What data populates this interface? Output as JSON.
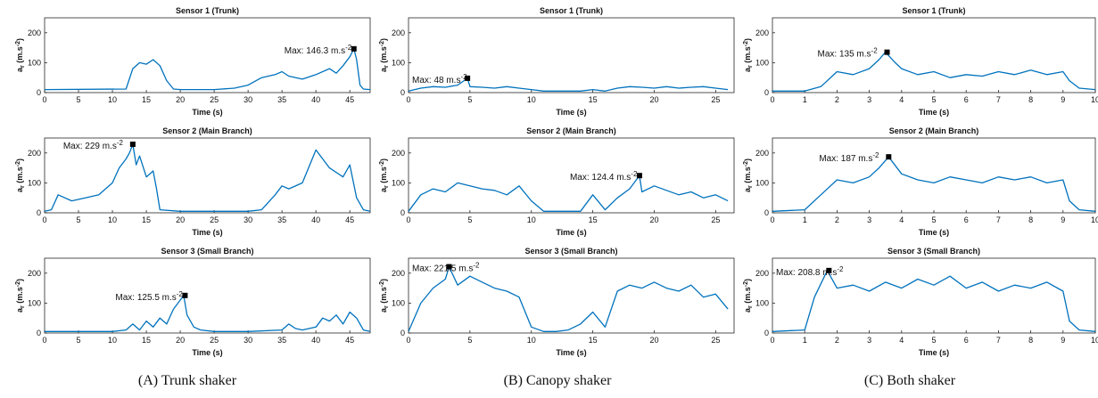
{
  "chart_data": [
    {
      "type": "line",
      "panel_group": "A",
      "title": "Sensor 1 (Trunk)",
      "xlabel": "Time (s)",
      "ylabel": "a_r (m.s^-2)",
      "xlim": [
        0,
        48
      ],
      "ylim": [
        0,
        250
      ],
      "xticks": [
        0,
        5,
        10,
        15,
        20,
        25,
        30,
        35,
        40,
        45
      ],
      "yticks": [
        0,
        100,
        200
      ],
      "series": [
        {
          "color": "#0072BD",
          "x": [
            0,
            12,
            13,
            14,
            15,
            16,
            17,
            18,
            19,
            20,
            25,
            28,
            30,
            32,
            34,
            35,
            36,
            38,
            40,
            42,
            43,
            44,
            45,
            45.6,
            46,
            46.5,
            47,
            48
          ],
          "y": [
            10,
            12,
            80,
            100,
            95,
            110,
            90,
            40,
            12,
            10,
            10,
            15,
            25,
            50,
            60,
            70,
            55,
            45,
            60,
            80,
            65,
            90,
            120,
            146.3,
            110,
            25,
            12,
            10
          ]
        }
      ],
      "marker": {
        "x": 45.6,
        "y": 146.3
      },
      "annotation": "Max: 146.3 m.s",
      "annotation_exp": "-2"
    },
    {
      "type": "line",
      "panel_group": "A",
      "title": "Sensor 2 (Main Branch)",
      "xlabel": "Time (s)",
      "ylabel": "a_r (m.s^-2)",
      "xlim": [
        0,
        48
      ],
      "ylim": [
        0,
        250
      ],
      "xticks": [
        0,
        5,
        10,
        15,
        20,
        25,
        30,
        35,
        40,
        45
      ],
      "yticks": [
        0,
        100,
        200
      ],
      "series": [
        {
          "color": "#0072BD",
          "x": [
            0,
            1,
            2,
            4,
            6,
            8,
            10,
            11,
            12,
            12.5,
            13,
            13.5,
            14,
            15,
            16,
            16.5,
            17,
            20,
            25,
            30,
            32,
            34,
            35,
            36,
            38,
            40,
            41,
            42,
            44,
            45,
            46,
            47,
            48
          ],
          "y": [
            5,
            10,
            60,
            40,
            50,
            60,
            100,
            150,
            180,
            200,
            229,
            160,
            190,
            120,
            140,
            80,
            10,
            5,
            5,
            5,
            10,
            60,
            90,
            80,
            100,
            210,
            180,
            150,
            120,
            160,
            50,
            10,
            5
          ]
        }
      ],
      "marker": {
        "x": 13,
        "y": 229
      },
      "annotation": "Max: 229 m.s",
      "annotation_exp": "-2"
    },
    {
      "type": "line",
      "panel_group": "A",
      "title": "Sensor 3 (Small Branch)",
      "xlabel": "Time (s)",
      "ylabel": "a_r (m.s^-2)",
      "xlim": [
        0,
        48
      ],
      "ylim": [
        0,
        250
      ],
      "xticks": [
        0,
        5,
        10,
        15,
        20,
        25,
        30,
        35,
        40,
        45
      ],
      "yticks": [
        0,
        100,
        200
      ],
      "series": [
        {
          "color": "#0072BD",
          "x": [
            0,
            10,
            12,
            13,
            14,
            15,
            16,
            17,
            18,
            19,
            20,
            20.5,
            21,
            22,
            23,
            25,
            30,
            35,
            36,
            37,
            38,
            40,
            41,
            42,
            43,
            44,
            45,
            46,
            47,
            48
          ],
          "y": [
            5,
            5,
            10,
            30,
            10,
            40,
            20,
            50,
            30,
            80,
            110,
            125.5,
            60,
            20,
            10,
            5,
            5,
            10,
            30,
            15,
            10,
            20,
            50,
            40,
            60,
            30,
            70,
            50,
            10,
            5
          ]
        }
      ],
      "marker": {
        "x": 20.7,
        "y": 125.5
      },
      "annotation": "Max: 125.5 m.s",
      "annotation_exp": "-2"
    },
    {
      "type": "line",
      "panel_group": "B",
      "title": "Sensor 1 (Trunk)",
      "xlabel": "Time (s)",
      "ylabel": "a_r (m.s^-2)",
      "xlim": [
        0,
        26.5
      ],
      "ylim": [
        0,
        250
      ],
      "xticks": [
        0,
        5,
        10,
        15,
        20,
        25
      ],
      "yticks": [
        0,
        100,
        200
      ],
      "series": [
        {
          "color": "#0072BD",
          "x": [
            0,
            1,
            2,
            3,
            4,
            4.8,
            5,
            6,
            7,
            8,
            9,
            10,
            11,
            12,
            13,
            14,
            15,
            16,
            17,
            18,
            19,
            20,
            21,
            22,
            23,
            24,
            25,
            26
          ],
          "y": [
            5,
            15,
            20,
            18,
            25,
            48,
            20,
            18,
            15,
            20,
            15,
            10,
            5,
            5,
            5,
            5,
            10,
            5,
            15,
            20,
            18,
            15,
            20,
            15,
            18,
            20,
            15,
            10
          ]
        }
      ],
      "marker": {
        "x": 4.8,
        "y": 48
      },
      "annotation": "Max: 48 m.s",
      "annotation_exp": "-2"
    },
    {
      "type": "line",
      "panel_group": "B",
      "title": "Sensor 2 (Main Branch)",
      "xlabel": "Time (s)",
      "ylabel": "a_r (m.s^-2)",
      "xlim": [
        0,
        26.5
      ],
      "ylim": [
        0,
        250
      ],
      "xticks": [
        0,
        5,
        10,
        15,
        20,
        25
      ],
      "yticks": [
        0,
        100,
        200
      ],
      "series": [
        {
          "color": "#0072BD",
          "x": [
            0,
            1,
            2,
            3,
            4,
            5,
            6,
            7,
            8,
            9,
            10,
            11,
            12,
            13,
            14,
            15,
            16,
            17,
            18,
            18.8,
            19,
            20,
            21,
            22,
            23,
            24,
            25,
            26
          ],
          "y": [
            5,
            60,
            80,
            70,
            100,
            90,
            80,
            75,
            60,
            90,
            40,
            5,
            5,
            5,
            5,
            60,
            10,
            50,
            80,
            124.4,
            70,
            90,
            75,
            60,
            70,
            50,
            60,
            40
          ]
        }
      ],
      "marker": {
        "x": 18.8,
        "y": 124.4
      },
      "annotation": "Max: 124.4 m.s",
      "annotation_exp": "-2"
    },
    {
      "type": "line",
      "panel_group": "B",
      "title": "Sensor 3 (Small Branch)",
      "xlabel": "Time (s)",
      "ylabel": "a_r (m.s^-2)",
      "xlim": [
        0,
        26.5
      ],
      "ylim": [
        0,
        250
      ],
      "xticks": [
        0,
        5,
        10,
        15,
        20,
        25
      ],
      "yticks": [
        0,
        100,
        200
      ],
      "series": [
        {
          "color": "#0072BD",
          "x": [
            0,
            1,
            2,
            3,
            3.3,
            4,
            5,
            6,
            7,
            8,
            9,
            10,
            11,
            12,
            13,
            14,
            15,
            16,
            17,
            18,
            19,
            20,
            21,
            22,
            23,
            24,
            25,
            26
          ],
          "y": [
            5,
            100,
            150,
            180,
            221.5,
            160,
            190,
            170,
            150,
            140,
            120,
            20,
            5,
            5,
            10,
            30,
            70,
            20,
            140,
            160,
            150,
            170,
            150,
            140,
            160,
            120,
            130,
            80
          ]
        }
      ],
      "marker": {
        "x": 3.3,
        "y": 221.5
      },
      "annotation": "Max: 221.5 m.s",
      "annotation_exp": "-2"
    },
    {
      "type": "line",
      "panel_group": "C",
      "title": "Sensor 1 (Trunk)",
      "xlabel": "Time (s)",
      "ylabel": "a_r (m.s^-2)",
      "xlim": [
        0,
        10
      ],
      "ylim": [
        0,
        250
      ],
      "xticks": [
        0,
        1,
        2,
        3,
        4,
        5,
        6,
        7,
        8,
        9,
        10
      ],
      "yticks": [
        0,
        100,
        200
      ],
      "series": [
        {
          "color": "#0072BD",
          "x": [
            0,
            1,
            1.5,
            2,
            2.5,
            3,
            3.3,
            3.5,
            3.8,
            4,
            4.5,
            5,
            5.5,
            6,
            6.5,
            7,
            7.5,
            8,
            8.5,
            9,
            9.2,
            9.5,
            10
          ],
          "y": [
            5,
            5,
            20,
            70,
            60,
            80,
            110,
            135,
            100,
            80,
            60,
            70,
            50,
            60,
            55,
            70,
            60,
            75,
            60,
            70,
            40,
            15,
            10
          ]
        }
      ],
      "marker": {
        "x": 3.55,
        "y": 135
      },
      "annotation": "Max: 135 m.s",
      "annotation_exp": "-2"
    },
    {
      "type": "line",
      "panel_group": "C",
      "title": "Sensor 2 (Main Branch)",
      "xlabel": "Time (s)",
      "ylabel": "a_r (m.s^-2)",
      "xlim": [
        0,
        10
      ],
      "ylim": [
        0,
        250
      ],
      "xticks": [
        0,
        1,
        2,
        3,
        4,
        5,
        6,
        7,
        8,
        9,
        10
      ],
      "yticks": [
        0,
        100,
        200
      ],
      "series": [
        {
          "color": "#0072BD",
          "x": [
            0,
            1,
            1.5,
            2,
            2.5,
            3,
            3.3,
            3.6,
            4,
            4.5,
            5,
            5.5,
            6,
            6.5,
            7,
            7.5,
            8,
            8.5,
            9,
            9.2,
            9.5,
            10
          ],
          "y": [
            5,
            10,
            60,
            110,
            100,
            120,
            150,
            187,
            130,
            110,
            100,
            120,
            110,
            100,
            120,
            110,
            120,
            100,
            110,
            40,
            10,
            5
          ]
        }
      ],
      "marker": {
        "x": 3.6,
        "y": 187
      },
      "annotation": "Max: 187 m.s",
      "annotation_exp": "-2"
    },
    {
      "type": "line",
      "panel_group": "C",
      "title": "Sensor 3 (Small Branch)",
      "xlabel": "Time (s)",
      "ylabel": "a_r (m.s^-2)",
      "xlim": [
        0,
        10
      ],
      "ylim": [
        0,
        250
      ],
      "xticks": [
        0,
        1,
        2,
        3,
        4,
        5,
        6,
        7,
        8,
        9,
        10
      ],
      "yticks": [
        0,
        100,
        200
      ],
      "series": [
        {
          "color": "#0072BD",
          "x": [
            0,
            1,
            1.3,
            1.7,
            2,
            2.5,
            3,
            3.5,
            4,
            4.5,
            5,
            5.5,
            6,
            6.5,
            7,
            7.5,
            8,
            8.5,
            9,
            9.2,
            9.5,
            10
          ],
          "y": [
            5,
            10,
            120,
            208.8,
            150,
            160,
            140,
            170,
            150,
            180,
            160,
            190,
            150,
            170,
            140,
            160,
            150,
            170,
            140,
            40,
            10,
            5
          ]
        }
      ],
      "marker": {
        "x": 1.75,
        "y": 208.8
      },
      "annotation": "Max: 208.8 m.s",
      "annotation_exp": "-2"
    }
  ],
  "captions": {
    "a": "(A) Trunk shaker",
    "b": "(B) Canopy shaker",
    "c": "(C) Both shaker"
  },
  "ylabel_parts": {
    "a": "a",
    "r": "r",
    "unit": "(m.s",
    "exp": "-2",
    "close": ")"
  }
}
